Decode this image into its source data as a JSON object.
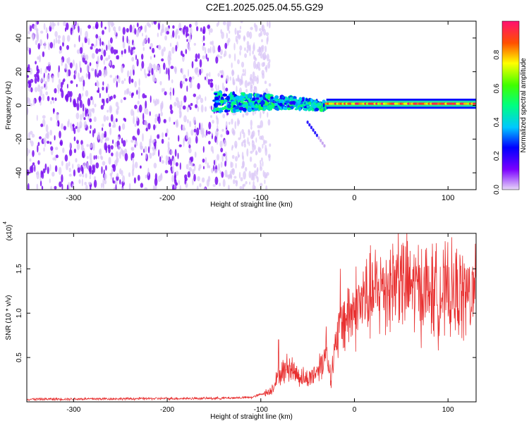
{
  "chart_data": [
    {
      "type": "heatmap",
      "title": "C2E1.2025.025.04.55.G29",
      "xlabel": "Height of straight line (km)",
      "ylabel": "Frequency (Hz)",
      "xlim": [
        -350,
        130
      ],
      "ylim": [
        -50,
        50
      ],
      "xticks": [
        -300,
        -200,
        -100,
        0,
        100
      ],
      "yticks": [
        -40,
        -20,
        0,
        20,
        40
      ],
      "colorbar": {
        "label": "Normalized spectral amplitude",
        "range": [
          0,
          1
        ],
        "ticks": [
          "0.0",
          "0.2",
          "0.4",
          "0.6",
          "0.8"
        ],
        "tick_values": [
          0.0,
          0.2,
          0.4,
          0.6,
          0.8
        ]
      },
      "features": [
        {
          "name": "noise",
          "x_range": [
            -350,
            -120
          ],
          "freq_range": [
            -50,
            50
          ],
          "amplitude": 0.1
        },
        {
          "name": "signal_band",
          "x_range": [
            -150,
            -30
          ],
          "center_freq": 2,
          "width": 12,
          "amplitude": 0.4
        },
        {
          "name": "stable_line",
          "x_range": [
            -30,
            130
          ],
          "center_freq": 1,
          "width": 3,
          "amplitude": 0.9
        },
        {
          "name": "diagonal_tail",
          "from": [
            -50,
            -10
          ],
          "to": [
            -32,
            -24
          ]
        }
      ]
    },
    {
      "type": "line",
      "xlabel": "Height of straight line (km)",
      "ylabel": "SNR (10 * v/v)",
      "scale_label": "(x10",
      "scale_exp": "4",
      "xlim": [
        -350,
        130
      ],
      "ylim": [
        0,
        1.9
      ],
      "xticks": [
        -300,
        -200,
        -100,
        0,
        100
      ],
      "yticks": [
        0.5,
        1.0,
        1.5
      ],
      "ytick_labels": [
        "0.5",
        "1.0",
        "1.5"
      ],
      "color": "#e83030",
      "series": [
        {
          "name": "SNR envelope",
          "x": [
            -350,
            -150,
            -110,
            -90,
            -80,
            -70,
            -60,
            -50,
            -40,
            -30,
            -25,
            -20,
            -15,
            -10,
            0,
            10,
            20,
            30,
            40,
            50,
            60,
            70,
            80,
            90,
            100,
            110,
            120,
            130
          ],
          "y": [
            0.03,
            0.04,
            0.05,
            0.12,
            0.3,
            0.4,
            0.3,
            0.25,
            0.35,
            0.55,
            0.3,
            0.6,
            0.9,
            0.95,
            1.05,
            1.15,
            1.2,
            1.3,
            1.35,
            1.35,
            1.3,
            1.28,
            1.25,
            1.22,
            1.22,
            1.22,
            1.2,
            1.2
          ]
        },
        {
          "name": "peaks",
          "x": [
            -81,
            -30,
            -15,
            47,
            113
          ],
          "y": [
            0.7,
            0.85,
            1.5,
            1.95,
            1.6
          ]
        }
      ]
    }
  ]
}
